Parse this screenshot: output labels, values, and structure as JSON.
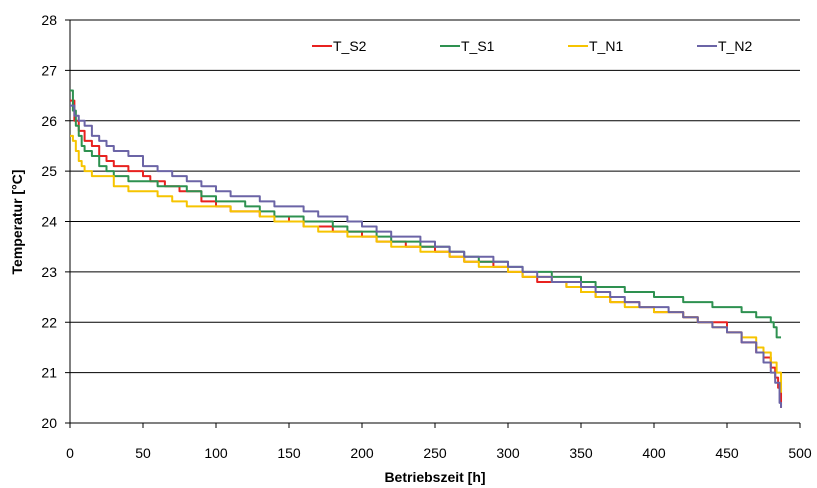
{
  "chart_data": {
    "type": "line",
    "title": "",
    "xlabel": "Betriebszeit [h]",
    "ylabel": "Temperatur [°C]",
    "xlim": [
      0,
      500
    ],
    "ylim": [
      20,
      28
    ],
    "xticks": [
      0,
      50,
      100,
      150,
      200,
      250,
      300,
      350,
      400,
      450,
      500
    ],
    "yticks": [
      20,
      21,
      22,
      23,
      24,
      25,
      26,
      27,
      28
    ],
    "grid": "horizontal",
    "legend_position": "top",
    "series": [
      {
        "name": "T_S2",
        "color": "#e8211f",
        "x": [
          0,
          3,
          6,
          10,
          15,
          20,
          25,
          30,
          35,
          40,
          45,
          50,
          55,
          60,
          65,
          70,
          75,
          80,
          90,
          100,
          110,
          120,
          130,
          140,
          150,
          160,
          170,
          180,
          190,
          200,
          210,
          220,
          230,
          240,
          250,
          260,
          270,
          280,
          290,
          300,
          310,
          320,
          330,
          340,
          350,
          360,
          370,
          380,
          390,
          400,
          410,
          420,
          430,
          440,
          450,
          460,
          470,
          475,
          480,
          483,
          485,
          487
        ],
        "y": [
          26.4,
          26.0,
          25.8,
          25.6,
          25.5,
          25.3,
          25.2,
          25.1,
          25.1,
          25.0,
          25.0,
          24.9,
          24.8,
          24.8,
          24.7,
          24.7,
          24.6,
          24.6,
          24.4,
          24.3,
          24.2,
          24.2,
          24.1,
          24.1,
          24.0,
          23.9,
          23.9,
          23.8,
          23.8,
          23.7,
          23.6,
          23.6,
          23.5,
          23.5,
          23.4,
          23.3,
          23.2,
          23.2,
          23.1,
          23.0,
          22.9,
          22.8,
          22.8,
          22.7,
          22.6,
          22.5,
          22.4,
          22.4,
          22.3,
          22.2,
          22.2,
          22.1,
          22.0,
          22.0,
          21.8,
          21.6,
          21.4,
          21.3,
          21.1,
          20.9,
          20.7,
          20.3
        ]
      },
      {
        "name": "T_S1",
        "color": "#2e9150",
        "x": [
          0,
          2,
          4,
          6,
          8,
          10,
          15,
          20,
          25,
          30,
          40,
          50,
          60,
          70,
          80,
          90,
          100,
          110,
          120,
          130,
          140,
          150,
          160,
          170,
          180,
          190,
          200,
          210,
          220,
          230,
          240,
          250,
          260,
          270,
          280,
          290,
          300,
          310,
          320,
          330,
          340,
          350,
          360,
          370,
          380,
          390,
          400,
          410,
          420,
          430,
          440,
          450,
          460,
          470,
          475,
          480,
          482,
          484,
          487
        ],
        "y": [
          26.6,
          26.2,
          25.9,
          25.7,
          25.5,
          25.4,
          25.3,
          25.1,
          25.0,
          24.9,
          24.8,
          24.8,
          24.7,
          24.7,
          24.6,
          24.5,
          24.4,
          24.4,
          24.3,
          24.2,
          24.1,
          24.1,
          24.0,
          24.0,
          23.9,
          23.8,
          23.8,
          23.7,
          23.6,
          23.6,
          23.5,
          23.5,
          23.4,
          23.3,
          23.2,
          23.2,
          23.1,
          23.0,
          23.0,
          22.9,
          22.9,
          22.8,
          22.7,
          22.7,
          22.6,
          22.6,
          22.5,
          22.5,
          22.4,
          22.4,
          22.3,
          22.3,
          22.2,
          22.1,
          22.1,
          22.0,
          21.9,
          21.7,
          21.7
        ]
      },
      {
        "name": "T_N1",
        "color": "#f6c400",
        "x": [
          0,
          2,
          4,
          6,
          8,
          10,
          15,
          20,
          30,
          40,
          50,
          60,
          70,
          80,
          90,
          100,
          110,
          120,
          130,
          140,
          150,
          160,
          170,
          180,
          190,
          200,
          210,
          220,
          230,
          240,
          250,
          260,
          270,
          280,
          290,
          300,
          310,
          320,
          330,
          340,
          350,
          360,
          370,
          380,
          390,
          400,
          410,
          420,
          430,
          440,
          450,
          460,
          470,
          475,
          480,
          484,
          487
        ],
        "y": [
          25.7,
          25.6,
          25.4,
          25.2,
          25.1,
          25.0,
          24.9,
          24.9,
          24.7,
          24.6,
          24.6,
          24.5,
          24.4,
          24.3,
          24.3,
          24.3,
          24.2,
          24.2,
          24.1,
          24.0,
          24.0,
          23.9,
          23.8,
          23.8,
          23.7,
          23.7,
          23.6,
          23.5,
          23.5,
          23.4,
          23.4,
          23.3,
          23.2,
          23.1,
          23.1,
          23.0,
          22.9,
          22.9,
          22.8,
          22.7,
          22.6,
          22.5,
          22.4,
          22.3,
          22.3,
          22.2,
          22.2,
          22.1,
          22.0,
          21.9,
          21.8,
          21.7,
          21.5,
          21.4,
          21.2,
          21.0,
          20.6
        ]
      },
      {
        "name": "T_N2",
        "color": "#6b64a6",
        "x": [
          0,
          3,
          6,
          10,
          15,
          20,
          25,
          30,
          40,
          50,
          60,
          70,
          80,
          90,
          100,
          110,
          120,
          130,
          140,
          150,
          160,
          170,
          180,
          190,
          200,
          210,
          220,
          230,
          240,
          250,
          260,
          270,
          280,
          290,
          300,
          310,
          320,
          330,
          340,
          350,
          360,
          370,
          380,
          390,
          400,
          410,
          420,
          430,
          440,
          450,
          460,
          470,
          475,
          480,
          483,
          486,
          487
        ],
        "y": [
          26.3,
          26.1,
          26.0,
          25.9,
          25.7,
          25.6,
          25.5,
          25.4,
          25.3,
          25.1,
          25.0,
          24.9,
          24.8,
          24.7,
          24.6,
          24.5,
          24.5,
          24.4,
          24.3,
          24.3,
          24.2,
          24.1,
          24.1,
          24.0,
          23.9,
          23.8,
          23.7,
          23.7,
          23.6,
          23.5,
          23.4,
          23.3,
          23.3,
          23.2,
          23.1,
          23.0,
          22.9,
          22.8,
          22.8,
          22.7,
          22.6,
          22.5,
          22.4,
          22.3,
          22.3,
          22.2,
          22.1,
          22.0,
          21.9,
          21.8,
          21.6,
          21.4,
          21.2,
          21.0,
          20.8,
          20.4,
          20.3
        ]
      }
    ]
  }
}
